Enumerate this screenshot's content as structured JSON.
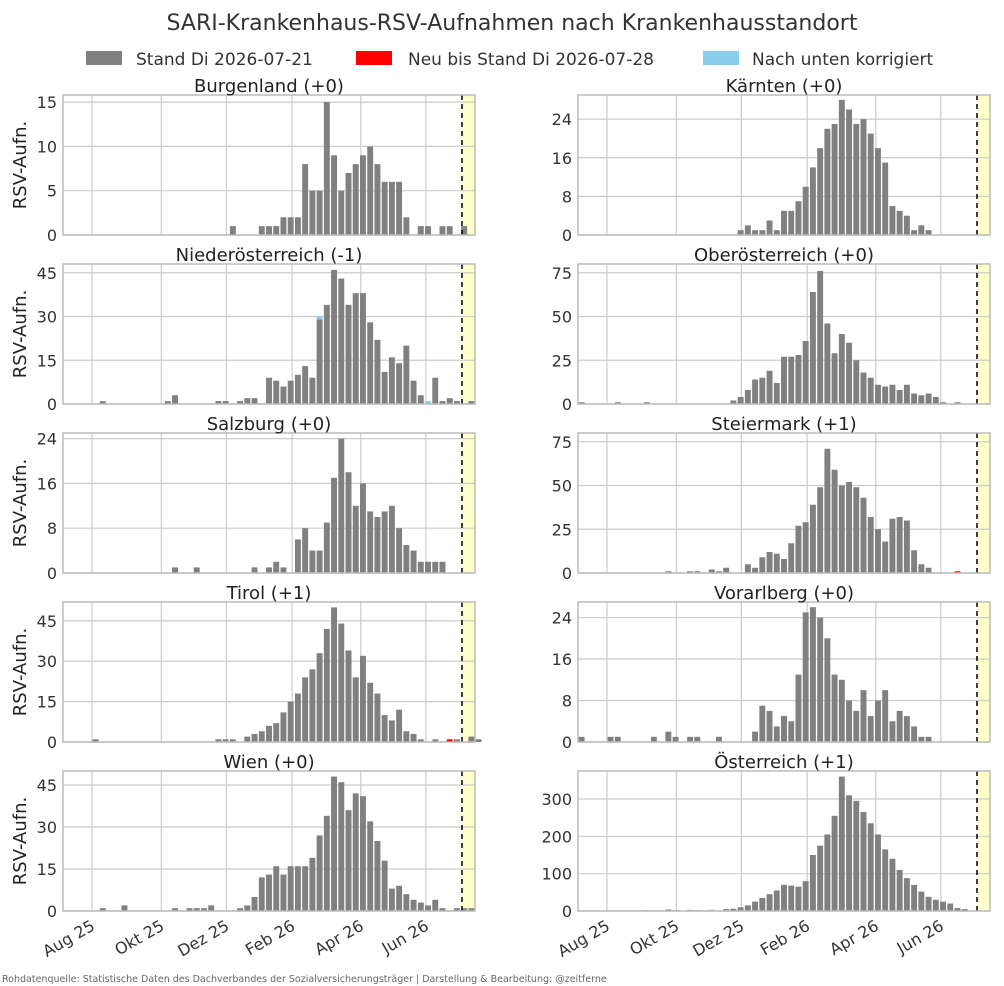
{
  "title": "SARI-Krankenhaus-RSV-Aufnahmen nach Krankenhausstandort",
  "legend": [
    {
      "label": "Stand Di 2026-07-21",
      "color": "#808080"
    },
    {
      "label": "Neu bis Stand Di 2026-07-28",
      "color": "#ff0000"
    },
    {
      "label": "Nach unten korrigiert",
      "color": "#87ceeb"
    }
  ],
  "footer": "Rohdatenquelle: Statistische Daten des Dachverbandes der Sozialversicherungsträger | Darstellung & Bearbeitung: @zeitferne",
  "ylabel": "RSV-Aufn.",
  "x_tick_labels": [
    "Aug 25",
    "Okt 25",
    "Dez 25",
    "Feb 26",
    "Apr 26",
    "Jun 26"
  ],
  "colors": {
    "bar": "#808080",
    "new": "#ff0000",
    "corrected": "#87ceeb",
    "forecast_band": "#ffffcc",
    "grid": "#cccccc",
    "axes": "#bbbbbb"
  },
  "chart_data": [
    {
      "type": "bar",
      "title": "Burgenland (+0)",
      "yticks": [
        0,
        5,
        10,
        15
      ],
      "ylim": [
        0,
        15.8
      ],
      "start_week": 4,
      "values": [
        0,
        0,
        0,
        0,
        0,
        0,
        0,
        0,
        0,
        0,
        0,
        0,
        0,
        0,
        0,
        0,
        0,
        0,
        0,
        1,
        0,
        0,
        0,
        1,
        1,
        1,
        2,
        2,
        2,
        8,
        5,
        5,
        15,
        9,
        5,
        7,
        8,
        9,
        10,
        8,
        6,
        6,
        6,
        2,
        0,
        1,
        1,
        0,
        1,
        1,
        0,
        1,
        0,
        0
      ],
      "new": {},
      "corrected": {}
    },
    {
      "type": "bar",
      "title": "Kärnten (+0)",
      "yticks": [
        0,
        8,
        16,
        24
      ],
      "ylim": [
        0,
        29
      ],
      "start_week": 0,
      "values": [
        0,
        0,
        0,
        0,
        0,
        0,
        0,
        0,
        0,
        0,
        0,
        0,
        0,
        0,
        0,
        0,
        0,
        0,
        0,
        0,
        0,
        0,
        1,
        2,
        1,
        1,
        3,
        1,
        5,
        5,
        7,
        10,
        14,
        18,
        22,
        23,
        28,
        26,
        23,
        24,
        21,
        18,
        15,
        6,
        5,
        4,
        1,
        2,
        1,
        0,
        0,
        0,
        0,
        0
      ],
      "new": {},
      "corrected": {}
    },
    {
      "type": "bar",
      "title": "Niederösterreich (-1)",
      "yticks": [
        0,
        15,
        30,
        45
      ],
      "ylim": [
        0,
        48
      ],
      "start_week": 4,
      "values": [
        0,
        1,
        0,
        0,
        0,
        0,
        0,
        0,
        0,
        0,
        1,
        3,
        0,
        0,
        0,
        0,
        0,
        1,
        1,
        0,
        1,
        2,
        2,
        0,
        9,
        8,
        6,
        8,
        10,
        13,
        9,
        29,
        34,
        46,
        43,
        34,
        38,
        38,
        28,
        22,
        11,
        16,
        14,
        20,
        8,
        3,
        0,
        9,
        1,
        2,
        1,
        0,
        1,
        0
      ],
      "new": {},
      "corrected": {
        "35": 1,
        "50": 1
      }
    },
    {
      "type": "bar",
      "title": "Oberösterreich (+0)",
      "yticks": [
        0,
        25,
        50,
        75
      ],
      "ylim": [
        0,
        80
      ],
      "start_week": 0,
      "values": [
        1,
        0,
        0,
        0,
        0,
        1,
        0,
        0,
        0,
        1,
        0,
        0,
        0,
        0,
        0,
        0,
        0,
        0,
        0,
        0,
        0,
        2,
        4,
        8,
        14,
        15,
        19,
        12,
        27,
        27,
        28,
        36,
        64,
        76,
        46,
        29,
        40,
        35,
        25,
        18,
        15,
        11,
        10,
        11,
        8,
        11,
        6,
        5,
        6,
        4,
        1,
        0,
        1,
        0
      ],
      "new": {},
      "corrected": {}
    },
    {
      "type": "bar",
      "title": "Salzburg (+0)",
      "yticks": [
        0,
        8,
        16,
        24
      ],
      "ylim": [
        0,
        25
      ],
      "start_week": 4,
      "values": [
        0,
        0,
        0,
        0,
        0,
        0,
        0,
        0,
        0,
        0,
        0,
        1,
        0,
        0,
        1,
        0,
        0,
        0,
        0,
        0,
        0,
        0,
        1,
        0,
        1,
        2,
        1,
        0,
        6,
        8,
        4,
        4,
        9,
        17,
        24,
        18,
        12,
        16,
        11,
        10,
        11,
        12,
        8,
        5,
        4,
        2,
        2,
        2,
        2,
        0,
        0,
        0,
        0,
        0
      ],
      "new": {},
      "corrected": {}
    },
    {
      "type": "bar",
      "title": "Steiermark (+1)",
      "yticks": [
        0,
        25,
        50,
        75
      ],
      "ylim": [
        0,
        80
      ],
      "start_week": 0,
      "values": [
        0,
        0,
        0,
        0,
        0,
        0,
        0,
        0,
        0,
        0,
        0,
        0,
        1,
        0,
        0,
        1,
        1,
        0,
        2,
        1,
        3,
        0,
        0,
        5,
        3,
        9,
        12,
        11,
        8,
        17,
        27,
        29,
        39,
        49,
        71,
        59,
        50,
        52,
        49,
        43,
        32,
        25,
        18,
        31,
        32,
        30,
        13,
        5,
        3,
        0,
        0,
        0,
        0,
        0
      ],
      "new": {
        "52": 1
      },
      "corrected": {}
    },
    {
      "type": "bar",
      "title": "Tirol (+1)",
      "yticks": [
        0,
        15,
        30,
        45
      ],
      "ylim": [
        0,
        52
      ],
      "start_week": 4,
      "values": [
        1,
        0,
        0,
        0,
        0,
        0,
        0,
        0,
        0,
        0,
        0,
        0,
        0,
        0,
        0,
        0,
        0,
        1,
        1,
        1,
        0,
        2,
        3,
        4,
        6,
        7,
        11,
        15,
        18,
        24,
        27,
        33,
        42,
        50,
        44,
        34,
        24,
        32,
        22,
        18,
        10,
        8,
        12,
        4,
        3,
        1,
        0,
        1,
        0,
        0,
        1,
        0,
        2,
        1
      ],
      "new": {
        "53": 1
      },
      "corrected": {}
    },
    {
      "type": "bar",
      "title": "Vorarlberg (+0)",
      "yticks": [
        0,
        8,
        16,
        24
      ],
      "ylim": [
        0,
        27
      ],
      "start_week": 0,
      "values": [
        1,
        0,
        0,
        0,
        1,
        1,
        0,
        0,
        0,
        0,
        1,
        0,
        2,
        1,
        0,
        1,
        1,
        0,
        0,
        1,
        0,
        0,
        0,
        0,
        2,
        7,
        6,
        3,
        5,
        4,
        13,
        25,
        26,
        24,
        20,
        13,
        12,
        8,
        6,
        10,
        5,
        8,
        10,
        4,
        6,
        5,
        3,
        1,
        1,
        0,
        0,
        0,
        0,
        0
      ],
      "new": {},
      "corrected": {}
    },
    {
      "type": "bar",
      "title": "Wien (+0)",
      "yticks": [
        0,
        15,
        30,
        45
      ],
      "ylim": [
        0,
        50
      ],
      "start_week": 4,
      "values": [
        0,
        1,
        0,
        0,
        2,
        0,
        0,
        0,
        0,
        0,
        0,
        1,
        0,
        1,
        1,
        1,
        2,
        0,
        0,
        0,
        1,
        2,
        5,
        12,
        13,
        16,
        13,
        16,
        16,
        16,
        19,
        27,
        34,
        48,
        46,
        36,
        42,
        41,
        32,
        25,
        18,
        8,
        9,
        6,
        4,
        3,
        2,
        4,
        1,
        0,
        1,
        1,
        1,
        0
      ],
      "new": {},
      "corrected": {}
    },
    {
      "type": "bar",
      "title": "Österreich (+1)",
      "yticks": [
        0,
        100,
        200,
        300
      ],
      "ylim": [
        0,
        375
      ],
      "start_week": 0,
      "values": [
        1,
        0,
        1,
        0,
        0,
        1,
        0,
        0,
        0,
        2,
        0,
        0,
        4,
        2,
        0,
        3,
        2,
        0,
        3,
        1,
        5,
        6,
        10,
        15,
        25,
        35,
        45,
        55,
        70,
        68,
        65,
        80,
        150,
        175,
        205,
        255,
        360,
        310,
        295,
        265,
        235,
        205,
        165,
        140,
        110,
        88,
        70,
        52,
        38,
        30,
        25,
        20,
        8,
        5
      ],
      "new": {},
      "corrected": {}
    }
  ]
}
